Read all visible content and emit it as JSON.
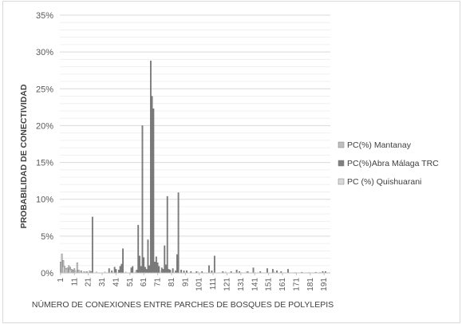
{
  "chart_data": {
    "type": "bar",
    "title": "",
    "xlabel": "NÚMERO DE CONEXIONES ENTRE PARCHES DE BOSQUES DE POLYLEPIS",
    "ylabel": "PROBABILIDAD DE CONECTIVIDAD",
    "ylim": [
      0,
      35
    ],
    "yticks": [
      "0%",
      "5%",
      "10%",
      "15%",
      "20%",
      "25%",
      "30%",
      "35%"
    ],
    "xticks": [
      "1",
      "11",
      "21",
      "31",
      "41",
      "51",
      "61",
      "71",
      "81",
      "91",
      "101",
      "111",
      "121",
      "131",
      "141",
      "151",
      "161",
      "171",
      "181",
      "191"
    ],
    "x_count": 195,
    "grid": true,
    "legend_position": "right",
    "series": [
      {
        "name": "PC(%) Mantanay",
        "color": "#bfbfbf",
        "points": [
          [
            1,
            1.5
          ],
          [
            2,
            2.6
          ],
          [
            3,
            1.7
          ],
          [
            4,
            0.9
          ],
          [
            5,
            0.6
          ],
          [
            6,
            0.7
          ],
          [
            7,
            1.0
          ],
          [
            8,
            0.8
          ],
          [
            9,
            0.5
          ],
          [
            10,
            0.4
          ],
          [
            11,
            0.6
          ],
          [
            12,
            0.3
          ],
          [
            13,
            1.4
          ],
          [
            14,
            0.4
          ],
          [
            15,
            0.2
          ],
          [
            16,
            0.3
          ],
          [
            18,
            0.2
          ],
          [
            20,
            0.2
          ],
          [
            22,
            0.3
          ],
          [
            23,
            0.2
          ]
        ]
      },
      {
        "name": "PC(%)Abra Málaga TRC",
        "color": "#7f7f7f",
        "points": [
          [
            24,
            7.6
          ],
          [
            36,
            0.6
          ],
          [
            38,
            0.3
          ],
          [
            40,
            0.8
          ],
          [
            41,
            0.5
          ],
          [
            43,
            0.4
          ],
          [
            44,
            0.9
          ],
          [
            45,
            1.2
          ],
          [
            46,
            3.3
          ],
          [
            52,
            0.7
          ],
          [
            53,
            0.9
          ],
          [
            56,
            0.4
          ],
          [
            57,
            6.5
          ],
          [
            58,
            2.3
          ],
          [
            59,
            0.9
          ],
          [
            60,
            20.0
          ],
          [
            61,
            2.1
          ],
          [
            62,
            0.8
          ],
          [
            63,
            0.5
          ],
          [
            64,
            4.5
          ],
          [
            65,
            1.0
          ],
          [
            66,
            28.8
          ],
          [
            67,
            24.0
          ],
          [
            68,
            22.3
          ],
          [
            69,
            1.5
          ],
          [
            70,
            2.2
          ],
          [
            71,
            1.4
          ],
          [
            72,
            0.9
          ],
          [
            74,
            0.7
          ],
          [
            75,
            0.5
          ],
          [
            76,
            3.7
          ],
          [
            77,
            1.1
          ],
          [
            78,
            10.4
          ],
          [
            79,
            0.5
          ],
          [
            80,
            0.4
          ],
          [
            82,
            0.6
          ],
          [
            84,
            0.3
          ],
          [
            85,
            2.5
          ],
          [
            86,
            10.9
          ],
          [
            88,
            0.4
          ],
          [
            90,
            0.3
          ],
          [
            92,
            0.3
          ],
          [
            95,
            0.2
          ],
          [
            99,
            0.2
          ],
          [
            103,
            0.2
          ],
          [
            108,
            1.0
          ],
          [
            110,
            0.3
          ],
          [
            112,
            2.3
          ],
          [
            118,
            0.2
          ],
          [
            124,
            0.2
          ],
          [
            128,
            0.4
          ],
          [
            130,
            0.2
          ],
          [
            136,
            0.2
          ],
          [
            140,
            0.7
          ],
          [
            145,
            0.2
          ],
          [
            150,
            0.6
          ],
          [
            154,
            0.5
          ],
          [
            157,
            0.3
          ],
          [
            160,
            0.2
          ],
          [
            165,
            0.5
          ],
          [
            175,
            0.1
          ],
          [
            185,
            0.1
          ],
          [
            190,
            0.2
          ],
          [
            192,
            0.2
          ]
        ]
      },
      {
        "name": "PC (%) Quishuarani",
        "color": "#d9d9d9",
        "points": [
          [
            3,
            0.8
          ],
          [
            5,
            0.5
          ],
          [
            8,
            0.4
          ],
          [
            12,
            0.3
          ],
          [
            15,
            0.3
          ],
          [
            19,
            0.2
          ],
          [
            27,
            0.2
          ],
          [
            33,
            0.2
          ],
          [
            48,
            0.2
          ],
          [
            55,
            0.3
          ],
          [
            73,
            0.3
          ],
          [
            81,
            0.3
          ],
          [
            100,
            0.2
          ],
          [
            120,
            0.2
          ],
          [
            135,
            0.2
          ],
          [
            155,
            0.2
          ],
          [
            170,
            0.1
          ],
          [
            180,
            0.1
          ],
          [
            188,
            0.1
          ]
        ]
      }
    ]
  }
}
